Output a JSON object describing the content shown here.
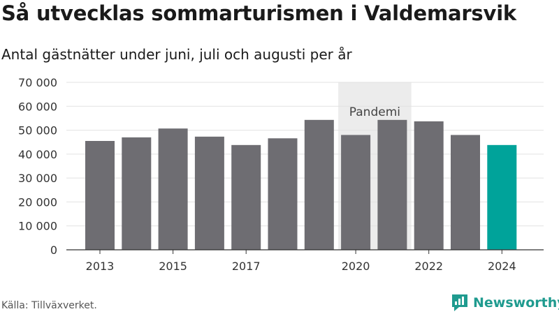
{
  "title": "Så utvecklas sommarturismen i Valdemarsvik",
  "subtitle": "Antal gästnätter under juni, juli och augusti per år",
  "source": "Källa: Tillväxverket.",
  "brand": "Newsworthy",
  "colors": {
    "bar": "#6e6d72",
    "highlight": "#00a39a",
    "band": "#ececec",
    "grid": "#e2e2e2",
    "brand": "#1f9b8f"
  },
  "chart_data": {
    "type": "bar",
    "categories": [
      "2013",
      "2014",
      "2015",
      "2016",
      "2017",
      "2018",
      "2019",
      "2020",
      "2021",
      "2022",
      "2023",
      "2024"
    ],
    "values": [
      45500,
      47000,
      50700,
      47300,
      43800,
      46600,
      54300,
      48000,
      54300,
      53700,
      48000,
      43800
    ],
    "highlight": [
      "2024"
    ],
    "x_tick_labels": [
      "2013",
      "2015",
      "2017",
      "2020",
      "2022",
      "2024"
    ],
    "y_tick_labels": [
      "0",
      "10 000",
      "20 000",
      "30 000",
      "40 000",
      "50 000",
      "60 000",
      "70 000"
    ],
    "ylim": [
      0,
      70000
    ],
    "ystep": 10000,
    "grid": true,
    "annotations": [
      {
        "label": "Pandemi",
        "from": "2020",
        "to": "2021"
      }
    ]
  }
}
